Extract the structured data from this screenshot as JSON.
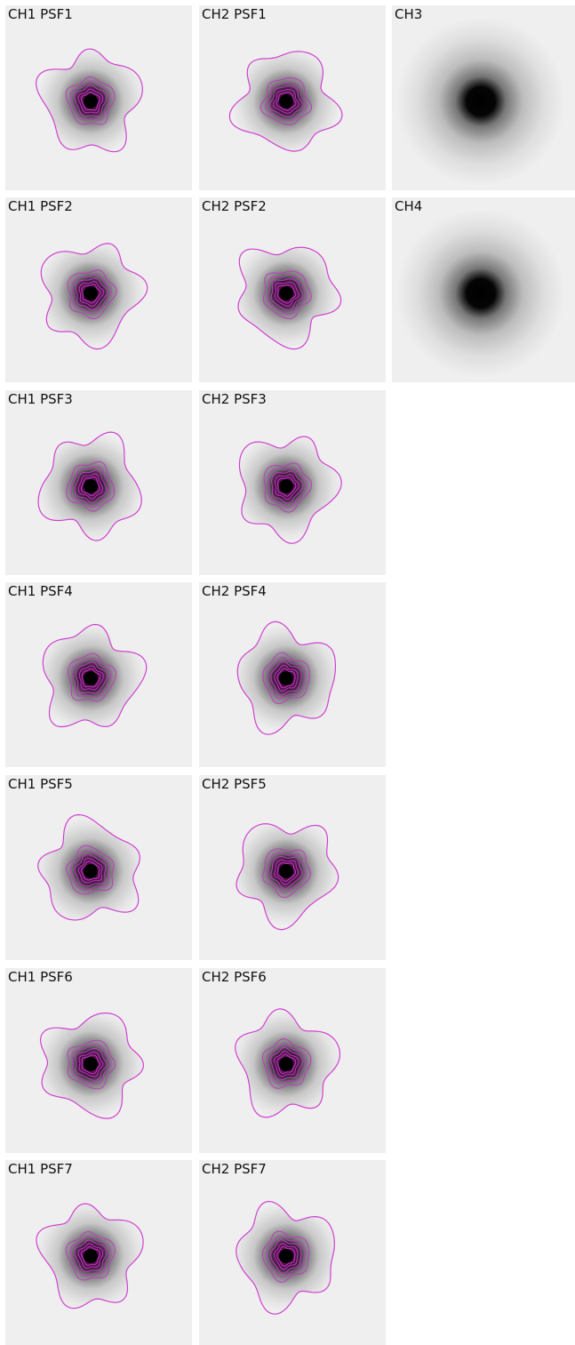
{
  "panels": [
    {
      "label": "CH1 PSF1"
    },
    {
      "label": "CH1 PSF2"
    },
    {
      "label": "CH1 PSF3"
    },
    {
      "label": "CH1 PSF4"
    },
    {
      "label": "CH1 PSF5"
    },
    {
      "label": "CH1 PSF6"
    },
    {
      "label": "CH1 PSF7"
    },
    {
      "label": "CH2 PSF1"
    },
    {
      "label": "CH2 PSF2"
    },
    {
      "label": "CH2 PSF3"
    },
    {
      "label": "CH2 PSF4"
    },
    {
      "label": "CH2 PSF5"
    },
    {
      "label": "CH2 PSF6"
    },
    {
      "label": "CH2 PSF7"
    },
    {
      "label": "CH3"
    },
    {
      "label": "CH4"
    }
  ]
}
